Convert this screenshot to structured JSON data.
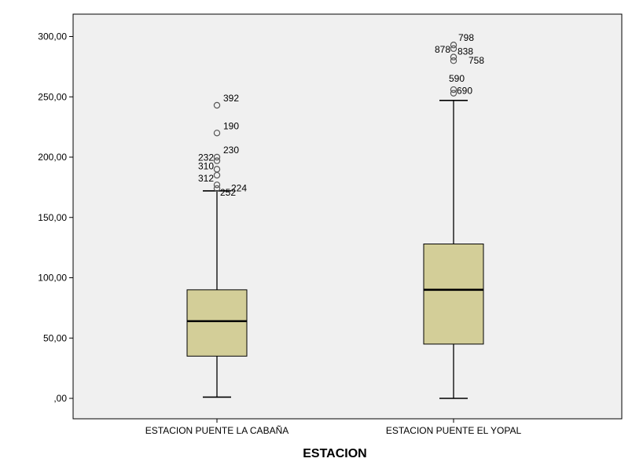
{
  "chart_data": {
    "type": "boxplot",
    "title": "",
    "xlabel": "ESTACION",
    "ylabel": "",
    "ylim": [
      0,
      310
    ],
    "y_ticks": [
      {
        "value": 0,
        "label": ",00"
      },
      {
        "value": 50,
        "label": "50,00"
      },
      {
        "value": 100,
        "label": "100,00"
      },
      {
        "value": 150,
        "label": "150,00"
      },
      {
        "value": 200,
        "label": "200,00"
      },
      {
        "value": 250,
        "label": "250,00"
      },
      {
        "value": 300,
        "label": "300,00"
      }
    ],
    "grid": false,
    "colors": {
      "plot_bg": "#f0f0f0",
      "box_fill": "#d3ce98",
      "line": "#000000",
      "outlier": "#555555"
    },
    "categories": [
      "ESTACION PUENTE LA CABAÑA",
      "ESTACION PUENTE EL YOPAL"
    ],
    "boxes": [
      {
        "category": "ESTACION PUENTE LA CABAÑA",
        "whisker_low": 1,
        "q1": 35,
        "median": 64,
        "q3": 90,
        "whisker_high": 172,
        "outliers": [
          {
            "id": "392",
            "value": 243
          },
          {
            "id": "190",
            "value": 220
          },
          {
            "id": "230",
            "value": 200
          },
          {
            "id": "232",
            "value": 197
          },
          {
            "id": "310",
            "value": 190
          },
          {
            "id": "312",
            "value": 185
          },
          {
            "id": "224",
            "value": 177
          },
          {
            "id": "252",
            "value": 174
          }
        ]
      },
      {
        "category": "ESTACION PUENTE EL YOPAL",
        "whisker_low": 0,
        "q1": 45,
        "median": 90,
        "q3": 128,
        "whisker_high": 247,
        "outliers": [
          {
            "id": "798",
            "value": 293
          },
          {
            "id": "878",
            "value": 290
          },
          {
            "id": "838",
            "value": 283
          },
          {
            "id": "758",
            "value": 280
          },
          {
            "id": "590",
            "value": 256
          },
          {
            "id": "690",
            "value": 253
          }
        ]
      }
    ]
  }
}
